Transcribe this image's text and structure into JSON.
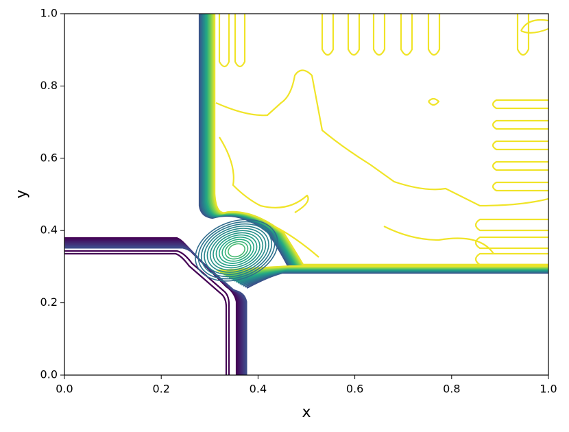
{
  "chart_data": {
    "type": "contour",
    "xlabel": "x",
    "ylabel": "y",
    "xlim": [
      0,
      1
    ],
    "ylim": [
      0,
      1
    ],
    "xticks": [
      {
        "value": 0,
        "label": "0.0"
      },
      0.2,
      0.4,
      0.6,
      0.8,
      {
        "value": 1,
        "label": "1.0"
      }
    ],
    "yticks": [
      {
        "value": 0,
        "label": "0.0"
      },
      0.2,
      0.4,
      0.6,
      0.8,
      {
        "value": 1,
        "label": "1.0"
      }
    ],
    "colormap": "viridis"
  }
}
